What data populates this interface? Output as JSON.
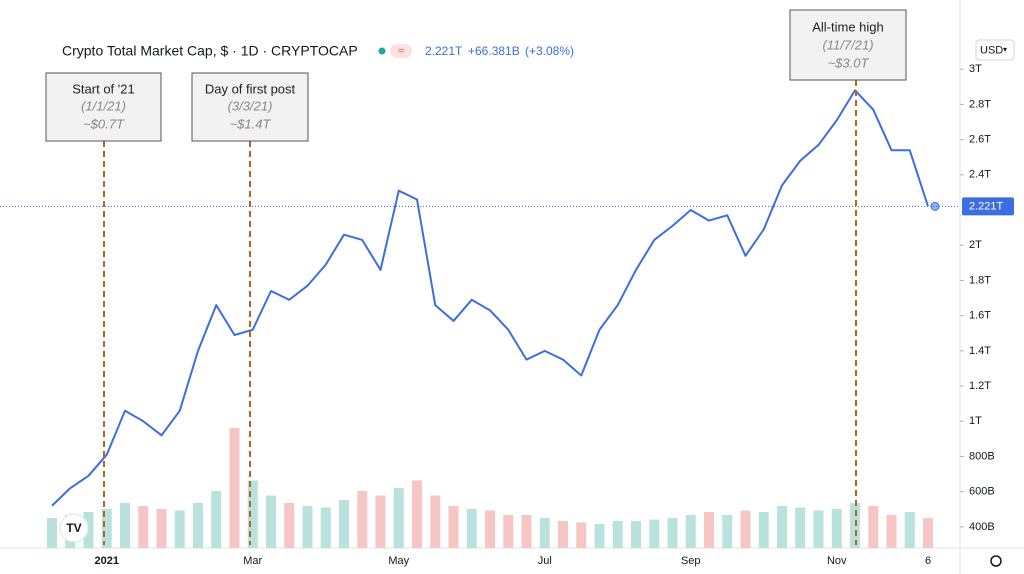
{
  "chart_data": {
    "type": "line",
    "title": "Crypto Total Market Cap, $ · 1D · CRYPTOCAP",
    "header_values": [
      "2.221T",
      "+66.381B",
      "(+3.08%)"
    ],
    "currency": "USD",
    "categories": [
      null,
      null,
      null,
      "2021",
      null,
      null,
      null,
      null,
      null,
      null,
      null,
      "Mar",
      null,
      null,
      null,
      null,
      null,
      null,
      null,
      "May",
      null,
      null,
      null,
      null,
      null,
      null,
      null,
      "Jul",
      null,
      null,
      null,
      null,
      null,
      null,
      null,
      "Sep",
      null,
      null,
      null,
      null,
      null,
      null,
      null,
      "Nov",
      null,
      null,
      null,
      null,
      "6"
    ],
    "series": [
      {
        "name": "Crypto Total Market Cap",
        "color": "#3d6ee0",
        "values": [
          0.52,
          0.62,
          0.69,
          0.81,
          1.06,
          1.0,
          0.92,
          1.06,
          1.4,
          1.66,
          1.49,
          1.52,
          1.74,
          1.69,
          1.77,
          1.89,
          2.06,
          2.03,
          1.86,
          2.31,
          2.26,
          1.66,
          1.57,
          1.69,
          1.63,
          1.52,
          1.35,
          1.4,
          1.35,
          1.26,
          1.52,
          1.66,
          1.86,
          2.03,
          2.11,
          2.2,
          2.14,
          2.17,
          1.94,
          2.09,
          2.34,
          2.48,
          2.57,
          2.71,
          2.88,
          2.77,
          2.54,
          2.54,
          2.221
        ]
      },
      {
        "name": "Volume",
        "axis": "y2",
        "color": "#b9e2dc",
        "values": [
          20,
          22,
          24,
          26,
          30,
          28,
          26,
          25,
          30,
          38,
          80,
          45,
          35,
          30,
          28,
          27,
          32,
          38,
          35,
          40,
          45,
          35,
          28,
          26,
          25,
          22,
          22,
          20,
          18,
          17,
          16,
          18,
          18,
          19,
          20,
          22,
          24,
          22,
          25,
          24,
          28,
          27,
          25,
          26,
          30,
          28,
          22,
          24,
          20
        ]
      }
    ],
    "last_price": {
      "value": 2.221,
      "label": "2.221T"
    },
    "ylim": [
      0.28,
      3.166
    ],
    "yticks": [
      {
        "value": 0.4,
        "label": "400B"
      },
      {
        "value": 0.6,
        "label": "600B"
      },
      {
        "value": 0.8,
        "label": "800B"
      },
      {
        "value": 1,
        "label": "1T"
      },
      {
        "value": 1.2,
        "label": "1.2T"
      },
      {
        "value": 1.4,
        "label": "1.4T"
      },
      {
        "value": 1.6,
        "label": "1.6T"
      },
      {
        "value": 1.8,
        "label": "1.8T"
      },
      {
        "value": 2,
        "label": "2T"
      },
      {
        "value": 2.4,
        "label": "2.4T"
      },
      {
        "value": 2.6,
        "label": "2.6T"
      },
      {
        "value": 2.8,
        "label": "2.8T"
      },
      {
        "value": 3,
        "label": "3T"
      }
    ],
    "y2lim": [
      0,
      100
    ],
    "annotations": [
      {
        "lines": [
          "Start of '21",
          "(1/1/21)",
          "~$0.7T"
        ]
      },
      {
        "lines": [
          "Day of first post",
          "(3/3/21)",
          "~$1.4T"
        ]
      },
      {
        "lines": [
          "All-time high",
          "(11/7/21)",
          "~$3.0T"
        ]
      }
    ]
  }
}
